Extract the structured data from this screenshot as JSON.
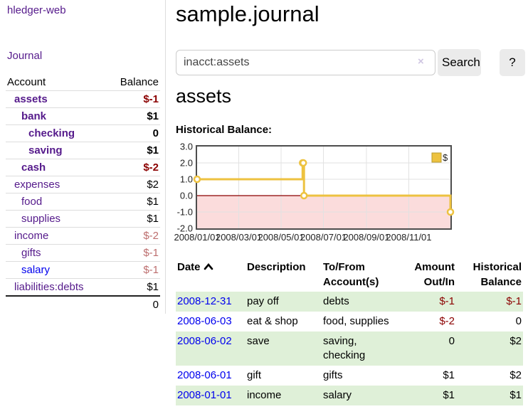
{
  "app": {
    "brand": "hledger-web",
    "nav_journal": "Journal"
  },
  "sidebar": {
    "columns": {
      "account": "Account",
      "balance": "Balance"
    },
    "accounts": [
      {
        "name": "assets",
        "depth": 1,
        "bold": true,
        "balance": "$-1",
        "balance_style": "neg",
        "link_color": "purple"
      },
      {
        "name": "bank",
        "depth": 2,
        "bold": true,
        "balance": "$1",
        "balance_style": "",
        "link_color": "purple"
      },
      {
        "name": "checking",
        "depth": 3,
        "bold": true,
        "balance": "0",
        "balance_style": "",
        "link_color": "purple"
      },
      {
        "name": "saving",
        "depth": 3,
        "bold": true,
        "balance": "$1",
        "balance_style": "",
        "link_color": "purple"
      },
      {
        "name": "cash",
        "depth": 2,
        "bold": true,
        "balance": "$-2",
        "balance_style": "neg",
        "link_color": "purple"
      },
      {
        "name": "expenses",
        "depth": 1,
        "bold": false,
        "balance": "$2",
        "balance_style": "",
        "link_color": "purple"
      },
      {
        "name": "food",
        "depth": 2,
        "bold": false,
        "balance": "$1",
        "balance_style": "",
        "link_color": "purple"
      },
      {
        "name": "supplies",
        "depth": 2,
        "bold": false,
        "balance": "$1",
        "balance_style": "",
        "link_color": "purple"
      },
      {
        "name": "income",
        "depth": 1,
        "bold": false,
        "balance": "$-2",
        "balance_style": "soft",
        "link_color": "purple"
      },
      {
        "name": "gifts",
        "depth": 2,
        "bold": false,
        "balance": "$-1",
        "balance_style": "soft",
        "link_color": "purple"
      },
      {
        "name": "salary",
        "depth": 2,
        "bold": false,
        "balance": "$-1",
        "balance_style": "soft",
        "link_color": "blue"
      },
      {
        "name": "liabilities:debts",
        "depth": 1,
        "bold": false,
        "balance": "$1",
        "balance_style": "",
        "link_color": "purple"
      }
    ],
    "total": "0"
  },
  "header": {
    "title": "sample.journal"
  },
  "search": {
    "value": "inacct:assets",
    "clear_icon": "×",
    "button_label": "Search",
    "help_label": "?"
  },
  "account_page": {
    "heading": "assets",
    "chart_title": "Historical Balance:"
  },
  "chart_data": {
    "type": "line",
    "step": true,
    "title": "Historical Balance:",
    "series": [
      {
        "name": "$",
        "color": "#edc240",
        "points": [
          [
            "2008-01-01",
            1
          ],
          [
            "2008-06-01",
            2
          ],
          [
            "2008-06-02",
            2
          ],
          [
            "2008-06-03",
            0
          ],
          [
            "2008-12-31",
            -1
          ]
        ]
      }
    ],
    "xlim": [
      "2008-01-01",
      "2008-12-31"
    ],
    "ylim": [
      -2,
      3
    ],
    "x_ticks": [
      "2008/01/01",
      "2008/03/01",
      "2008/05/01",
      "2008/07/01",
      "2008/09/01",
      "2008/11/01"
    ],
    "y_ticks": [
      3.0,
      2.0,
      1.0,
      0.0,
      -1.0,
      -2.0
    ],
    "grid": true,
    "negative_region_shaded": true,
    "zero_line_color": "#8b0000",
    "legend": {
      "label": "$",
      "position": "top-right"
    }
  },
  "register": {
    "headers": [
      {
        "line1": "Date",
        "line2": "",
        "align": "left",
        "sorted_asc": true
      },
      {
        "line1": "Description",
        "line2": "",
        "align": "left"
      },
      {
        "line1": "To/From",
        "line2": "Account(s)",
        "align": "left"
      },
      {
        "line1": "Amount",
        "line2": "Out/In",
        "align": "right"
      },
      {
        "line1": "Historical",
        "line2": "Balance",
        "align": "right"
      }
    ],
    "rows": [
      {
        "date": "2008-12-31",
        "description": "pay off",
        "accounts": "debts",
        "amount": "$-1",
        "amount_neg": true,
        "balance": "$-1",
        "balance_neg": true
      },
      {
        "date": "2008-06-03",
        "description": "eat & shop",
        "accounts": "food, supplies",
        "amount": "$-2",
        "amount_neg": true,
        "balance": "0",
        "balance_neg": false
      },
      {
        "date": "2008-06-02",
        "description": "save",
        "accounts": "saving, checking",
        "amount": "0",
        "amount_neg": false,
        "balance": "$2",
        "balance_neg": false
      },
      {
        "date": "2008-06-01",
        "description": "gift",
        "accounts": "gifts",
        "amount": "$1",
        "amount_neg": false,
        "balance": "$2",
        "balance_neg": false
      },
      {
        "date": "2008-01-01",
        "description": "income",
        "accounts": "salary",
        "amount": "$1",
        "amount_neg": false,
        "balance": "$1",
        "balance_neg": false
      }
    ]
  },
  "colors": {
    "link_purple": "#551a8b",
    "link_blue": "#0000ee",
    "negative_strong": "#8b0000",
    "negative_soft": "#bd6e6e",
    "row_stripe_green": "#dff0d8",
    "chart_line_yellow": "#edc240",
    "chart_negative_region_pink": "#fbdcdc",
    "chart_zero_line": "#8b0000"
  }
}
